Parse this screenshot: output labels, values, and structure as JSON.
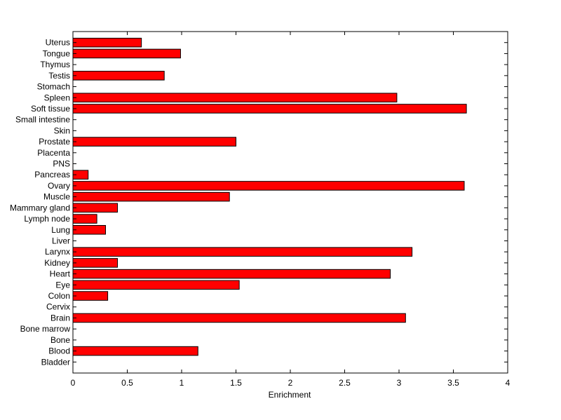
{
  "chart_data": {
    "type": "bar",
    "orientation": "horizontal",
    "title": "",
    "xlabel": "Enrichment",
    "ylabel": "",
    "xlim": [
      0,
      4
    ],
    "xticks": [
      "0",
      "0.5",
      "1",
      "1.5",
      "2",
      "2.5",
      "3",
      "3.5",
      "4"
    ],
    "grid": false,
    "bar_color": "#ff0000",
    "edge_color": "#000000",
    "categories": [
      "Bladder",
      "Blood",
      "Bone",
      "Bone marrow",
      "Brain",
      "Cervix",
      "Colon",
      "Eye",
      "Heart",
      "Kidney",
      "Larynx",
      "Liver",
      "Lung",
      "Lymph node",
      "Mammary gland",
      "Muscle",
      "Ovary",
      "Pancreas",
      "PNS",
      "Placenta",
      "Prostate",
      "Skin",
      "Small intestine",
      "Soft tissue",
      "Spleen",
      "Stomach",
      "Testis",
      "Thymus",
      "Tongue",
      "Uterus"
    ],
    "values": [
      0,
      1.15,
      0,
      0,
      3.06,
      0,
      0.32,
      1.53,
      2.92,
      0.41,
      3.12,
      0,
      0.3,
      0.22,
      0.41,
      1.44,
      3.6,
      0.14,
      0,
      0,
      1.5,
      0,
      0,
      3.62,
      2.98,
      0,
      0.84,
      0,
      0.99,
      0.63
    ]
  }
}
